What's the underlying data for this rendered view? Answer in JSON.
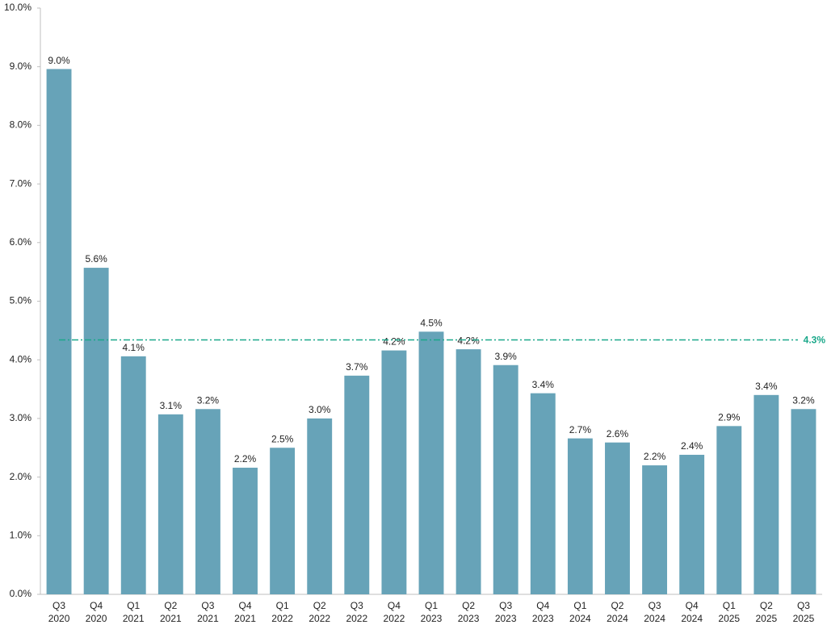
{
  "chart_data": {
    "type": "bar",
    "categories": [
      "Q3 2020",
      "Q4 2020",
      "Q1 2021",
      "Q2 2021",
      "Q3 2021",
      "Q4 2021",
      "Q1 2022",
      "Q2 2022",
      "Q3 2022",
      "Q4 2022",
      "Q1 2023",
      "Q2 2023",
      "Q3 2023",
      "Q4 2023",
      "Q1 2024",
      "Q2 2024",
      "Q3 2024",
      "Q4 2024",
      "Q1 2025",
      "Q2 2025",
      "Q3 2025"
    ],
    "values": [
      8.96,
      5.57,
      4.06,
      3.07,
      3.16,
      2.16,
      2.5,
      3.0,
      3.73,
      4.16,
      4.48,
      4.18,
      3.91,
      3.43,
      2.66,
      2.59,
      2.2,
      2.38,
      2.87,
      3.4,
      3.16
    ],
    "value_labels": [
      "9.0%",
      "5.6%",
      "4.1%",
      "3.1%",
      "3.2%",
      "2.2%",
      "2.5%",
      "3.0%",
      "3.7%",
      "4.2%",
      "4.5%",
      "4.2%",
      "3.9%",
      "3.4%",
      "2.7%",
      "2.6%",
      "2.2%",
      "2.4%",
      "2.9%",
      "3.4%",
      "3.2%"
    ],
    "color": "#67a3b8",
    "ylim": [
      0,
      10
    ],
    "yticks": [
      {
        "value": 0,
        "label": "0.0%"
      },
      {
        "value": 1,
        "label": "1.0%"
      },
      {
        "value": 2,
        "label": "2.0%"
      },
      {
        "value": 3,
        "label": "3.0%"
      },
      {
        "value": 4,
        "label": "4.0%"
      },
      {
        "value": 5,
        "label": "5.0%"
      },
      {
        "value": 6,
        "label": "6.0%"
      },
      {
        "value": 7,
        "label": "7.0%"
      },
      {
        "value": 8,
        "label": "8.0%"
      },
      {
        "value": 9,
        "label": "9.0%"
      },
      {
        "value": 10,
        "label": "10.0%"
      }
    ],
    "grid": false,
    "reference_line": {
      "value": 4.34,
      "label": "4.3%",
      "color": "#1aa88a"
    }
  }
}
